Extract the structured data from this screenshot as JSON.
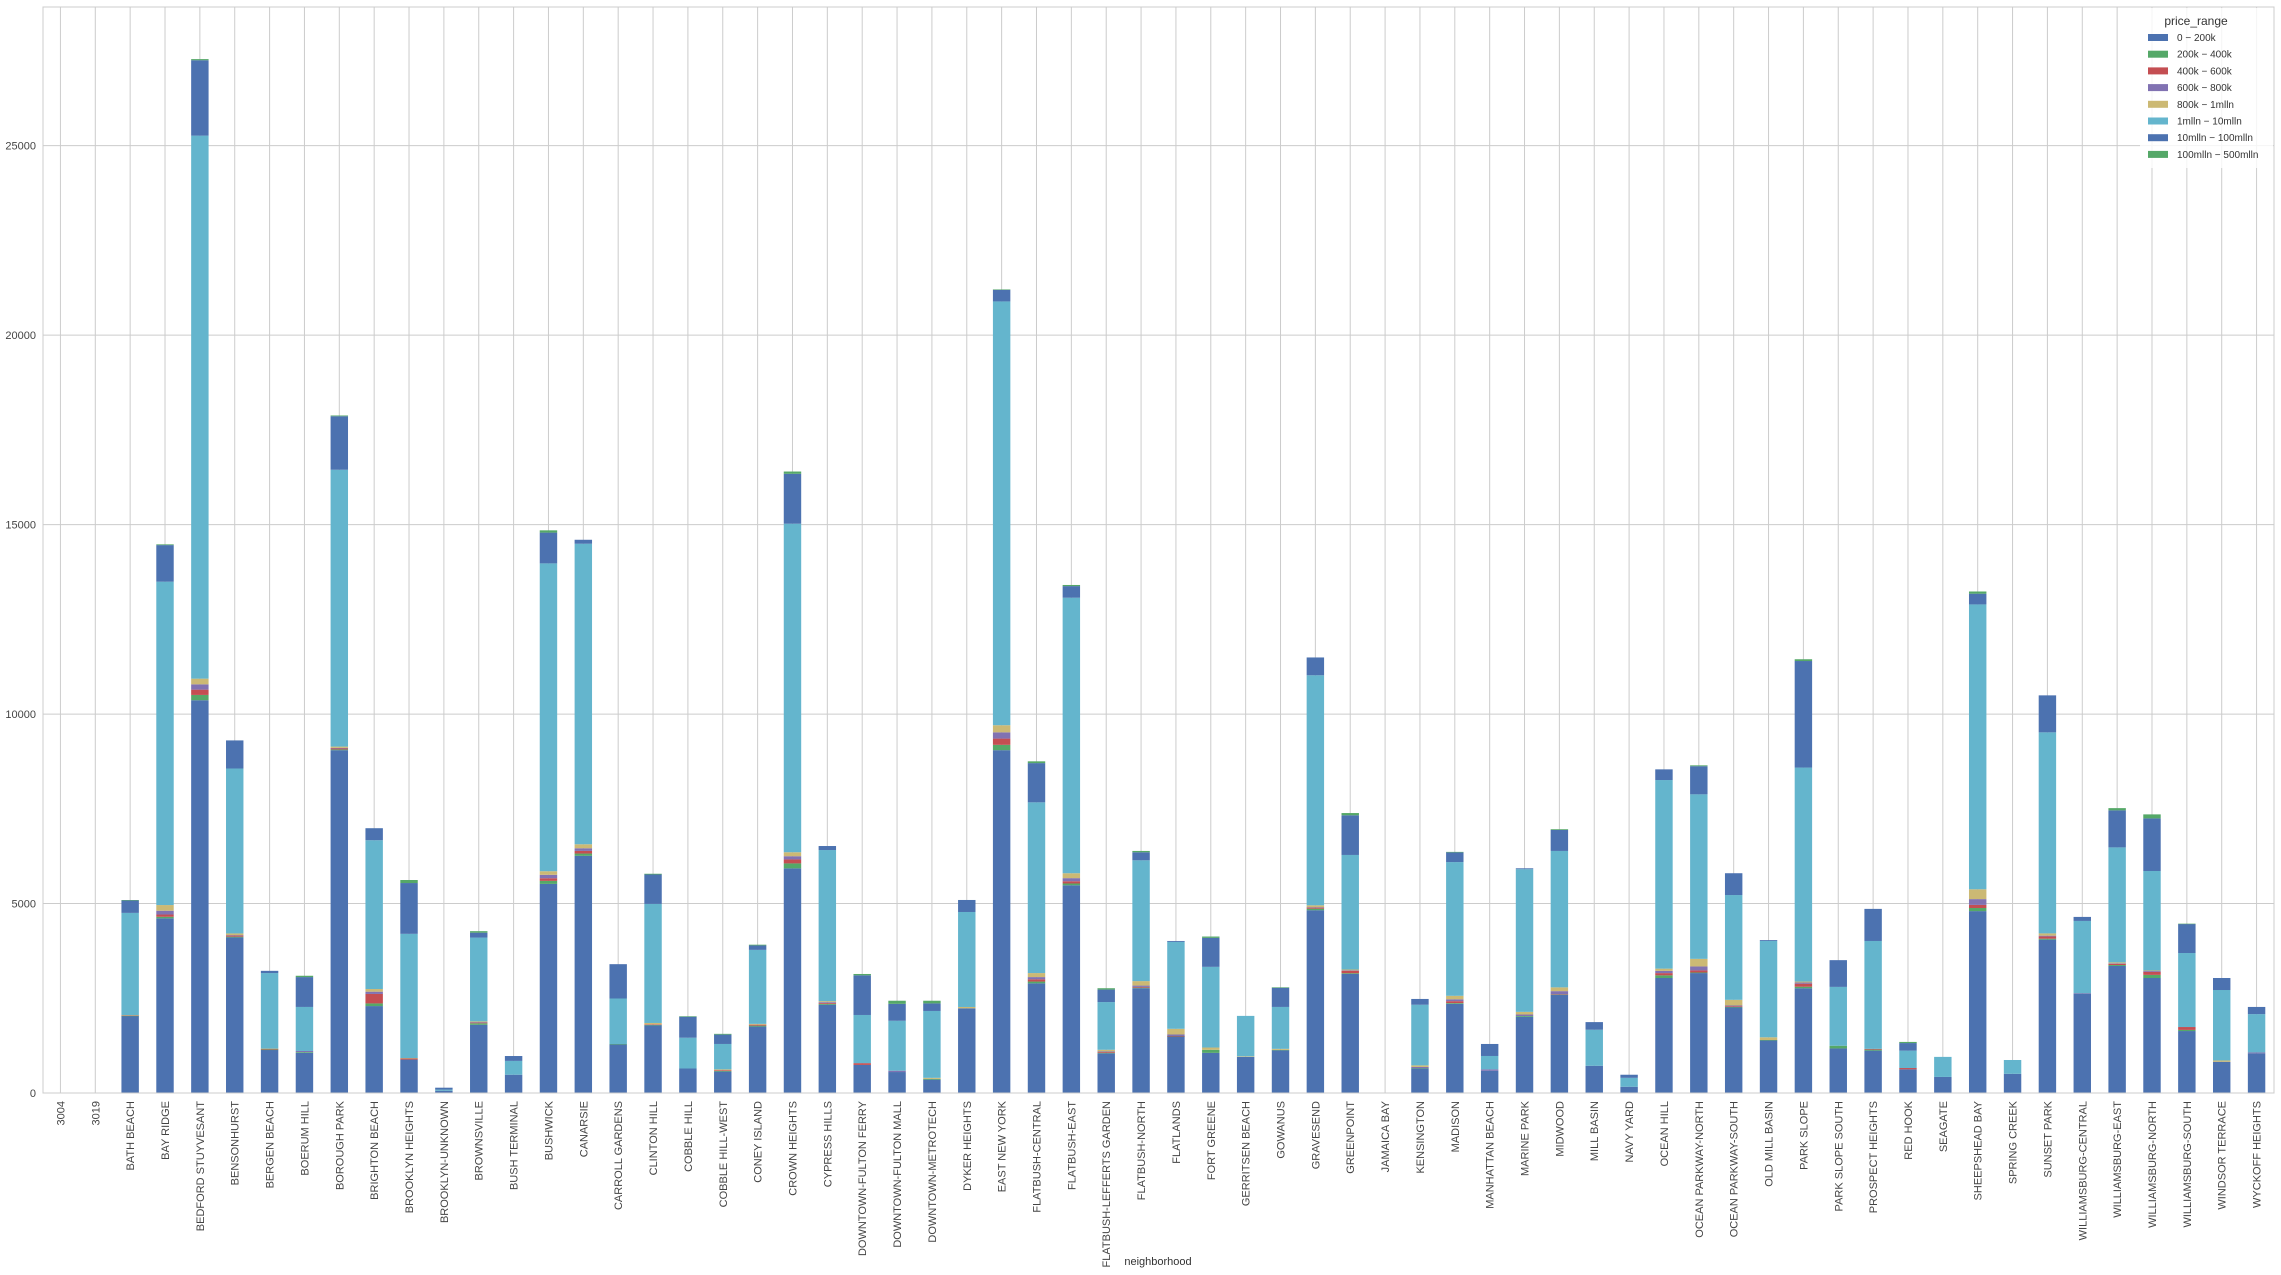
{
  "chart_data": {
    "type": "bar",
    "stacked": true,
    "title": "",
    "xlabel": "neighborhood",
    "ylabel": "",
    "ylim": [
      0,
      28660
    ],
    "yticks": [
      0,
      5000,
      10000,
      15000,
      20000,
      25000
    ],
    "grid": true,
    "legend_title": "price_range",
    "legend_position": "top-right",
    "categories": [
      "3004",
      "3019",
      "BATH BEACH",
      "BAY RIDGE",
      "BEDFORD STUYVESANT",
      "BENSONHURST",
      "BERGEN BEACH",
      "BOERUM HILL",
      "BOROUGH PARK",
      "BRIGHTON BEACH",
      "BROOKLYN HEIGHTS",
      "BROOKLYN-UNKNOWN",
      "BROWNSVILLE",
      "BUSH TERMINAL",
      "BUSHWICK",
      "CANARSIE",
      "CARROLL GARDENS",
      "CLINTON HILL",
      "COBBLE HILL",
      "COBBLE HILL-WEST",
      "CONEY ISLAND",
      "CROWN HEIGHTS",
      "CYPRESS HILLS",
      "DOWNTOWN-FULTON FERRY",
      "DOWNTOWN-FULTON MALL",
      "DOWNTOWN-METROTECH",
      "DYKER HEIGHTS",
      "EAST NEW YORK",
      "FLATBUSH-CENTRAL",
      "FLATBUSH-EAST",
      "FLATBUSH-LEFFERTS GARDEN",
      "FLATBUSH-NORTH",
      "FLATLANDS",
      "FORT GREENE",
      "GERRITSEN BEACH",
      "GOWANUS",
      "GRAVESEND",
      "GREENPOINT",
      "JAMAICA BAY",
      "KENSINGTON",
      "MADISON",
      "MANHATTAN BEACH",
      "MARINE PARK",
      "MIDWOOD",
      "MILL BASIN",
      "NAVY YARD",
      "OCEAN HILL",
      "OCEAN PARKWAY-NORTH",
      "OCEAN PARKWAY-SOUTH",
      "OLD MILL BASIN",
      "PARK SLOPE",
      "PARK SLOPE SOUTH",
      "PROSPECT HEIGHTS",
      "RED HOOK",
      "SEAGATE",
      "SHEEPSHEAD BAY",
      "SPRING CREEK",
      "SUNSET PARK",
      "WILLIAMSBURG-CENTRAL",
      "WILLIAMSBURG-EAST",
      "WILLIAMSBURG-NORTH",
      "WILLIAMSBURG-SOUTH",
      "WINDSOR TERRACE",
      "WYCKOFF HEIGHTS"
    ],
    "series": [
      {
        "name": "0 − 200k",
        "color": "#4C72B0",
        "values": [
          0,
          0,
          2035,
          4610,
          10365,
          4106,
          1141,
          1059,
          9047,
          2294,
          882,
          60,
          1800,
          482,
          5518,
          6259,
          1282,
          1788,
          647,
          565,
          1753,
          5929,
          2329,
          741,
          553,
          353,
          2235,
          9047,
          2894,
          5482,
          1047,
          2765,
          1494,
          1059,
          953,
          1129,
          4824,
          3141,
          0,
          647,
          2353,
          588,
          2012,
          2588,
          718,
          165,
          3035,
          3165,
          2259,
          1388,
          2765,
          1176,
          1118,
          624,
          424,
          4800,
          506,
          4047,
          2624,
          3353,
          3035,
          1635,
          824,
          1047
        ]
      },
      {
        "name": "200k − 400k",
        "color": "#55A868",
        "values": [
          0,
          0,
          5,
          40,
          140,
          20,
          5,
          20,
          20,
          70,
          0,
          0,
          40,
          0,
          80,
          60,
          10,
          10,
          0,
          15,
          25,
          130,
          25,
          0,
          0,
          20,
          0,
          141,
          47,
          47,
          15,
          15,
          5,
          82,
          0,
          10,
          40,
          20,
          0,
          10,
          20,
          0,
          20,
          10,
          0,
          0,
          70,
          15,
          10,
          10,
          40,
          71,
          27,
          0,
          0,
          82,
          0,
          25,
          0,
          25,
          82,
          30,
          0,
          0
        ]
      },
      {
        "name": "400k − 600k",
        "color": "#C44E52",
        "values": [
          0,
          0,
          10,
          60,
          140,
          30,
          20,
          0,
          30,
          250,
          30,
          0,
          20,
          0,
          70,
          70,
          0,
          15,
          0,
          20,
          25,
          105,
          25,
          47,
          0,
          0,
          0,
          165,
          59,
          59,
          20,
          20,
          5,
          0,
          0,
          0,
          30,
          68,
          0,
          0,
          50,
          0,
          0,
          10,
          0,
          0,
          59,
          55,
          20,
          0,
          80,
          0,
          20,
          35,
          0,
          82,
          0,
          60,
          0,
          35,
          82,
          76,
          0,
          0
        ]
      },
      {
        "name": "600k − 800k",
        "color": "#8172B2",
        "values": [
          0,
          0,
          0,
          100,
          140,
          10,
          0,
          30,
          10,
          60,
          0,
          0,
          10,
          0,
          90,
          70,
          0,
          0,
          0,
          0,
          0,
          85,
          20,
          0,
          35,
          0,
          0,
          165,
          59,
          82,
          15,
          35,
          40,
          0,
          0,
          0,
          10,
          10,
          0,
          30,
          50,
          36,
          39,
          80,
          0,
          0,
          59,
          105,
          20,
          0,
          30,
          0,
          0,
          0,
          0,
          153,
          0,
          20,
          11,
          10,
          24,
          0,
          0,
          24
        ]
      },
      {
        "name": "800k − 1mlln",
        "color": "#CCB974",
        "values": [
          0,
          0,
          5,
          150,
          150,
          45,
          5,
          0,
          35,
          70,
          10,
          0,
          20,
          0,
          95,
          105,
          0,
          35,
          0,
          24,
          21,
          105,
          25,
          0,
          0,
          27,
          35,
          188,
          106,
          130,
          44,
          118,
          150,
          59,
          15,
          26,
          49,
          20,
          0,
          42,
          92,
          0,
          70,
          100,
          0,
          0,
          59,
          200,
          150,
          72,
          26,
          0,
          0,
          0,
          0,
          259,
          0,
          60,
          0,
          24,
          10,
          0,
          35,
          0
        ]
      },
      {
        "name": "1mlln − 10mlln",
        "color": "#64B5CD",
        "values": [
          0,
          0,
          2698,
          8534,
          14330,
          4353,
          1994,
          1162,
          7306,
          3927,
          3278,
          30,
          2212,
          365,
          8124,
          7931,
          1202,
          3142,
          812,
          670,
          1953,
          8670,
          3988,
          1271,
          1318,
          1765,
          2507,
          11184,
          4506,
          7271,
          1259,
          3188,
          2294,
          2129,
          1067,
          1106,
          6071,
          3023,
          0,
          1600,
          3529,
          353,
          3765,
          3600,
          952,
          235,
          4977,
          4342,
          2765,
          2542,
          5647,
          1553,
          2847,
          459,
          529,
          7518,
          365,
          5306,
          1906,
          3035,
          2626,
          1953,
          1859,
          1011
        ]
      },
      {
        "name": "10mlln − 100mlln",
        "color": "#4C72B0",
        "values": [
          0,
          0,
          329,
          965,
          1990,
          741,
          59,
          788,
          1412,
          317,
          1341,
          50,
          129,
          129,
          812,
          105,
          906,
          776,
          553,
          247,
          117,
          1317,
          106,
          1047,
          447,
          200,
          317,
          307,
          1035,
          306,
          329,
          212,
          24,
          765,
          0,
          505,
          470,
          1047,
          0,
          153,
          259,
          317,
          24,
          553,
          201,
          82,
          282,
          742,
          576,
          23,
          2812,
          706,
          847,
          200,
          0,
          283,
          0,
          976,
          106,
          977,
          1388,
          765,
          317,
          189
        ]
      },
      {
        "name": "100mlln − 500mlln",
        "color": "#55A868",
        "values": [
          0,
          0,
          10,
          20,
          30,
          0,
          0,
          35,
          20,
          0,
          80,
          0,
          40,
          0,
          60,
          0,
          0,
          20,
          15,
          20,
          20,
          60,
          0,
          35,
          82,
          70,
          0,
          10,
          47,
          30,
          36,
          35,
          0,
          35,
          0,
          15,
          0,
          59,
          0,
          0,
          10,
          0,
          0,
          20,
          0,
          0,
          0,
          23,
          0,
          0,
          47,
          0,
          0,
          30,
          0,
          58,
          0,
          0,
          0,
          59,
          106,
          10,
          0,
          0
        ]
      }
    ]
  }
}
